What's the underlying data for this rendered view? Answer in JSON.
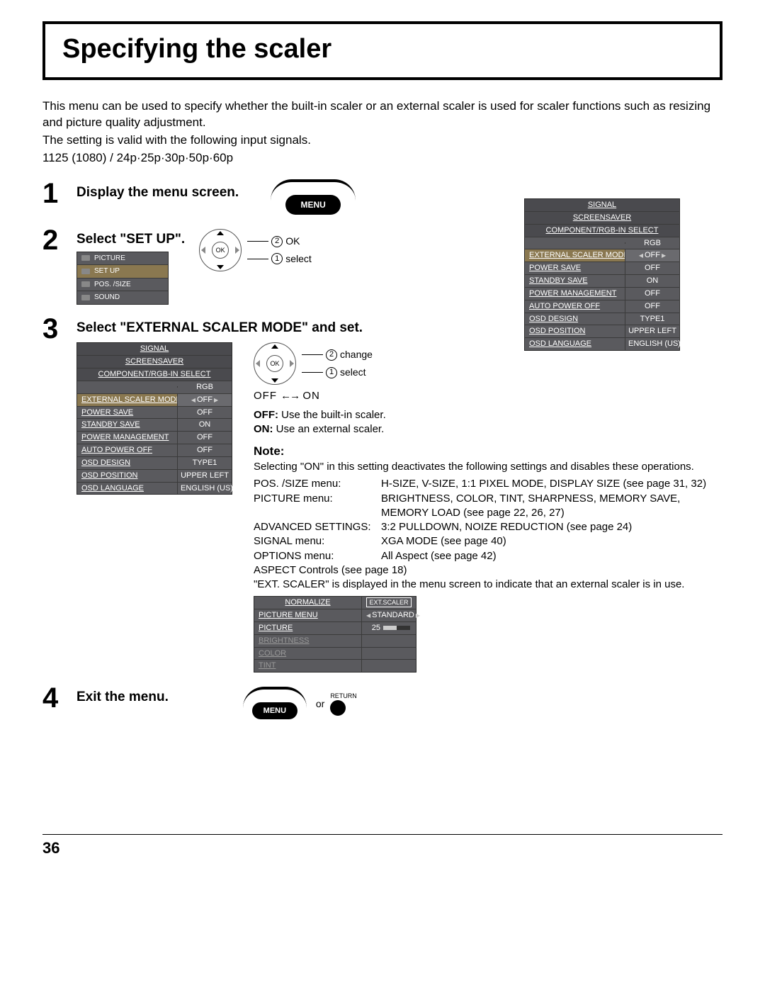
{
  "title": "Specifying the scaler",
  "intro": {
    "p1": "This menu can be used to specify whether the built-in scaler or an external scaler is used for scaler functions such as resizing and picture quality adjustment.",
    "p2": "The setting is valid with the following input signals.",
    "p3": "1125 (1080) / 24p·25p·30p·50p·60p"
  },
  "steps": {
    "s1": {
      "num": "1",
      "heading": "Display the menu screen."
    },
    "s2": {
      "num": "2",
      "heading": "Select \"SET UP\"."
    },
    "s3": {
      "num": "3",
      "heading": "Select \"EXTERNAL SCALER MODE\" and set."
    },
    "s4": {
      "num": "4",
      "heading": "Exit the menu."
    }
  },
  "remote": {
    "menu_label": "MENU",
    "ok": "OK",
    "ok_lbl": "OK",
    "select_lbl": "select",
    "change_lbl": "change",
    "circ1": "1",
    "circ2": "2",
    "return_lbl": "RETURN",
    "or": "or"
  },
  "setup_menu": {
    "items": [
      "PICTURE",
      "SET UP",
      "POS. /SIZE",
      "SOUND"
    ],
    "selected": "SET UP"
  },
  "osd": {
    "headers": [
      "SIGNAL",
      "SCREENSAVER",
      "COMPONENT/RGB-IN SELECT"
    ],
    "rgb_val": "RGB",
    "rows": [
      {
        "label": "EXTERNAL SCALER MODE",
        "val": "OFF",
        "sel": true,
        "arrows": true
      },
      {
        "label": "POWER SAVE",
        "val": "OFF"
      },
      {
        "label": "STANDBY SAVE",
        "val": "ON"
      },
      {
        "label": "POWER MANAGEMENT",
        "val": "OFF"
      },
      {
        "label": "AUTO POWER OFF",
        "val": "OFF"
      },
      {
        "label": "OSD DESIGN",
        "val": "TYPE1"
      },
      {
        "label": "OSD POSITION",
        "val": "UPPER LEFT"
      },
      {
        "label": "OSD LANGUAGE",
        "val": "ENGLISH (US)"
      }
    ]
  },
  "toggle": {
    "off": "OFF",
    "on": "ON"
  },
  "explain": {
    "off_line_label": "OFF:",
    "off_line": " Use the built-in scaler.",
    "on_line_label": "ON:",
    "on_line": " Use an external scaler.",
    "note_head": "Note:",
    "note_intro": "Selecting \"ON\" in this setting deactivates the following settings and disables these operations.",
    "rows": [
      {
        "k": "POS. /SIZE menu:",
        "v": "H-SIZE, V-SIZE, 1:1 PIXEL MODE, DISPLAY SIZE (see page 31, 32)"
      },
      {
        "k": "PICTURE menu:",
        "v": "BRIGHTNESS, COLOR, TINT, SHARPNESS, MEMORY SAVE, MEMORY LOAD (see page 22, 26, 27)"
      },
      {
        "k": "ADVANCED SETTINGS:",
        "v": "3:2 PULLDOWN, NOIZE REDUCTION (see page 24)"
      },
      {
        "k": "SIGNAL menu:",
        "v": "XGA MODE (see page 40)"
      },
      {
        "k": "OPTIONS menu:",
        "v": "All Aspect (see page 42)"
      }
    ],
    "aspect": "ASPECT Controls (see page 18)",
    "ext_note": "\"EXT. SCALER\" is displayed in the menu screen to indicate that an external scaler is in use."
  },
  "picture_osd": {
    "normalize": "NORMALIZE",
    "ext_badge": "EXT.SCALER",
    "rows": [
      {
        "label": "PICTURE MENU",
        "val": "STANDARD",
        "arrows": true
      },
      {
        "label": "PICTURE",
        "val": "25",
        "bar": 50,
        "arrows": true
      },
      {
        "label": "BRIGHTNESS",
        "dim": true
      },
      {
        "label": "COLOR",
        "dim": true
      },
      {
        "label": "TINT",
        "dim": true
      }
    ]
  },
  "page_number": "36"
}
